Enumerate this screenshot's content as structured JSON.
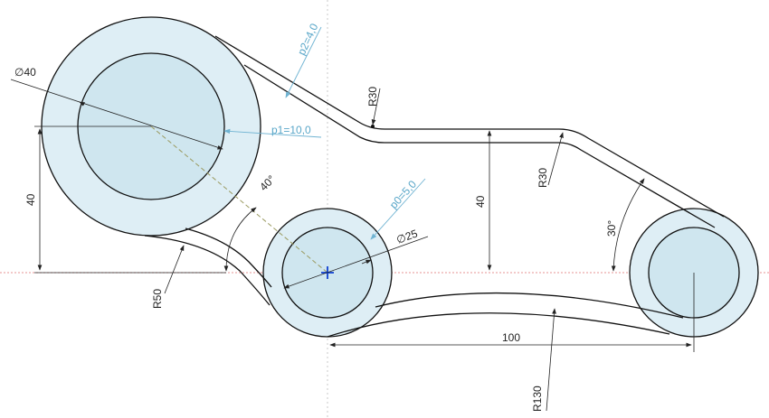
{
  "dimensions": {
    "d40": "∅40",
    "p2": "p2=4,0",
    "r30_top": "R30",
    "p1": "p1=10,0",
    "h40_left": "40",
    "ang40": "40°",
    "p0": "p0=5,0",
    "d25": "∅25",
    "h40_mid": "40",
    "r30_right": "R30",
    "ang30": "30°",
    "r50": "R50",
    "len100": "100",
    "r130": "R130"
  },
  "colors": {
    "disc_fill": "#deeef5",
    "inner_fill": "#cfe6ef",
    "constraint": "#6fb3d2",
    "axis": "#e07070",
    "origin": "#1040d0"
  }
}
